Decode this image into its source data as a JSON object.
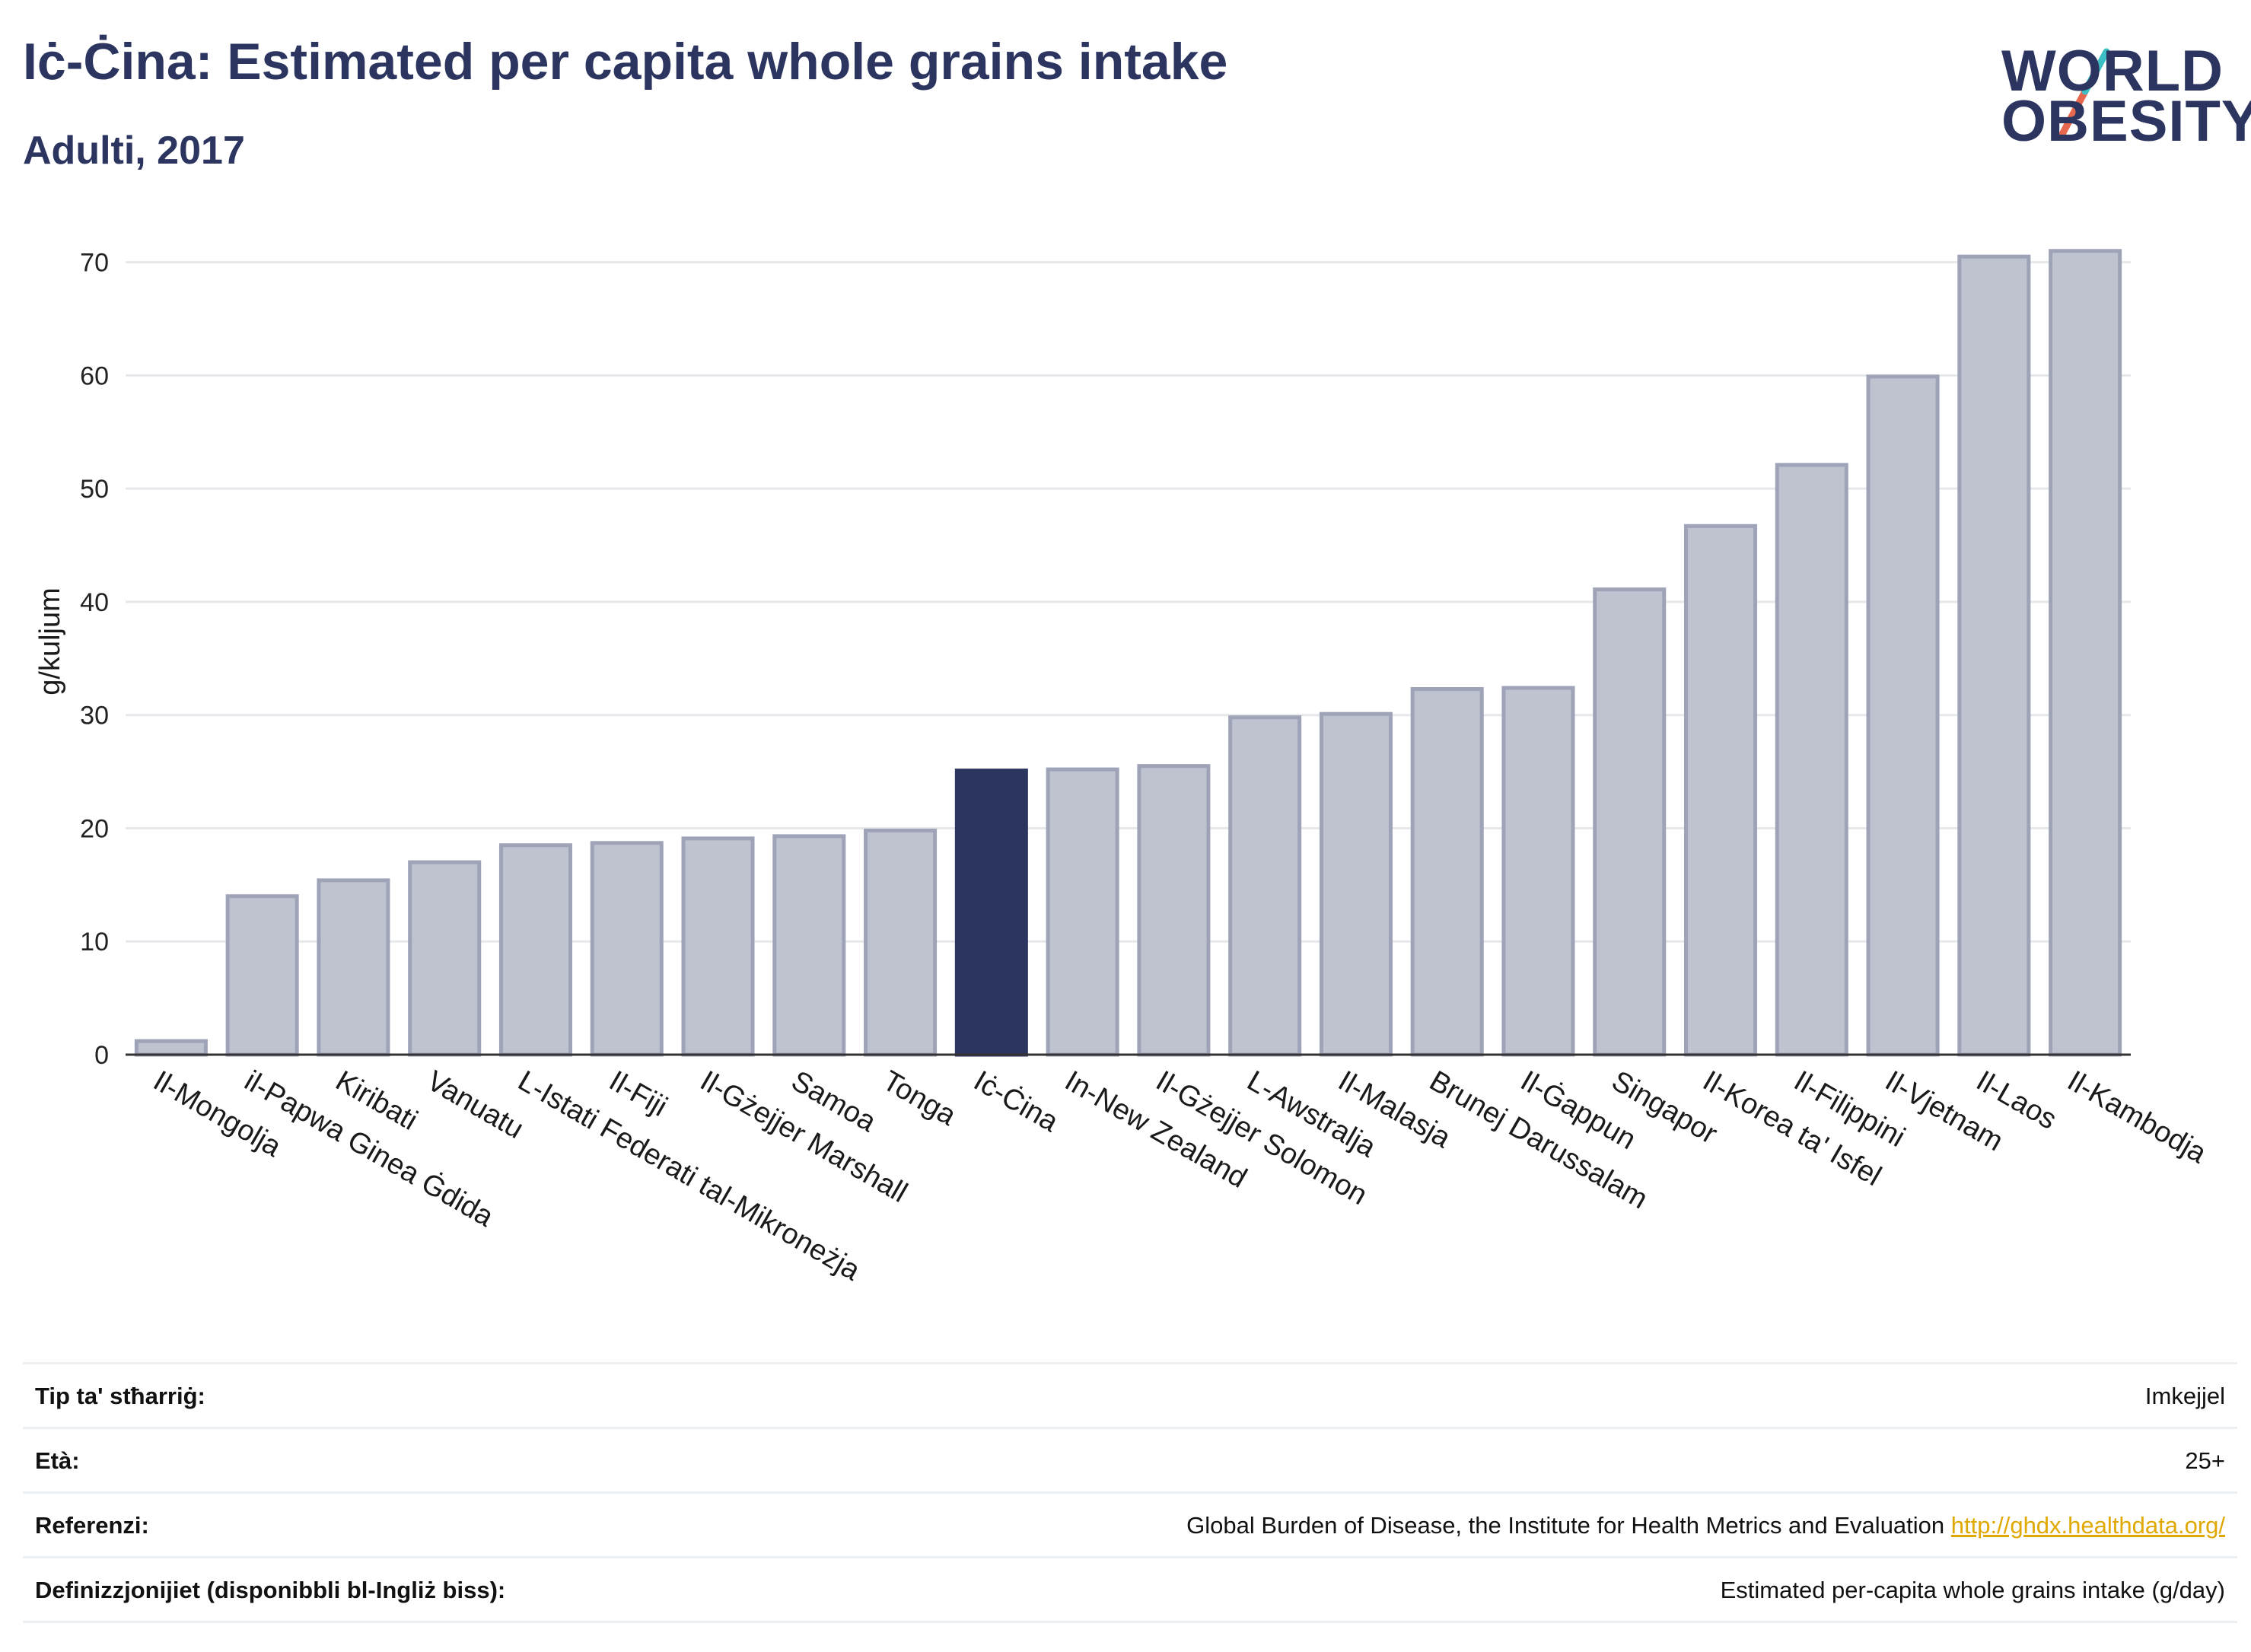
{
  "header": {
    "title": "Iċ-Ċina: Estimated per capita whole grains intake",
    "subtitle": "Adulti, 2017"
  },
  "logo": {
    "line1": "WORLD",
    "line2": "OBESITY",
    "colors": {
      "text": "#2b3560",
      "slash_top": "#3bbfc4",
      "slash_bottom": "#e8674f"
    }
  },
  "chart_data": {
    "type": "bar",
    "ylabel": "g/kuljum",
    "ylim": [
      0,
      73
    ],
    "yticks": [
      0,
      10,
      20,
      30,
      40,
      50,
      60,
      70
    ],
    "grid": true,
    "highlight": "Iċ-Ċina",
    "colors": {
      "bar": "#bfc2cf",
      "bar_edge": "#9ea3b8",
      "highlight": "#2b3560",
      "grid": "#e6e8ec"
    },
    "categories": [
      "Il-Mongolja",
      "il-Papwa Ginea Ġdida",
      "Kiribati",
      "Vanuatu",
      "L-Istati Federati tal-Mikroneżja",
      "Il-Fiji",
      "Il-Gżejjer Marshall",
      "Samoa",
      "Tonga",
      "Iċ-Ċina",
      "In-New Zealand",
      "Il-Gżejjer Solomon",
      "L-Awstralja",
      "Il-Malasja",
      "Brunej Darussalam",
      "Il-Ġappun",
      "Singapor",
      "Il-Korea ta' Isfel",
      "Il-Filippini",
      "Il-Vjetnam",
      "Il-Laos",
      "Il-Kambodja"
    ],
    "values": [
      1.2,
      14.0,
      15.4,
      17.0,
      18.5,
      18.7,
      19.1,
      19.3,
      19.8,
      25.1,
      25.2,
      25.5,
      29.8,
      30.1,
      32.3,
      32.4,
      41.1,
      46.7,
      52.1,
      59.9,
      70.5,
      71.0
    ]
  },
  "info": {
    "rows": [
      {
        "key": "Tip ta' stħarriġ:",
        "value": "Imkejjel"
      },
      {
        "key": "Età:",
        "value": "25+"
      },
      {
        "key": "Referenzi:",
        "value": "Global Burden of Disease, the Institute for Health Metrics and Evaluation",
        "link": "http://ghdx.healthdata.org/"
      },
      {
        "key": "Definizzjonijiet (disponibbli bl-Ingliż biss):",
        "value": "Estimated per-capita whole grains intake (g/day)"
      }
    ]
  }
}
